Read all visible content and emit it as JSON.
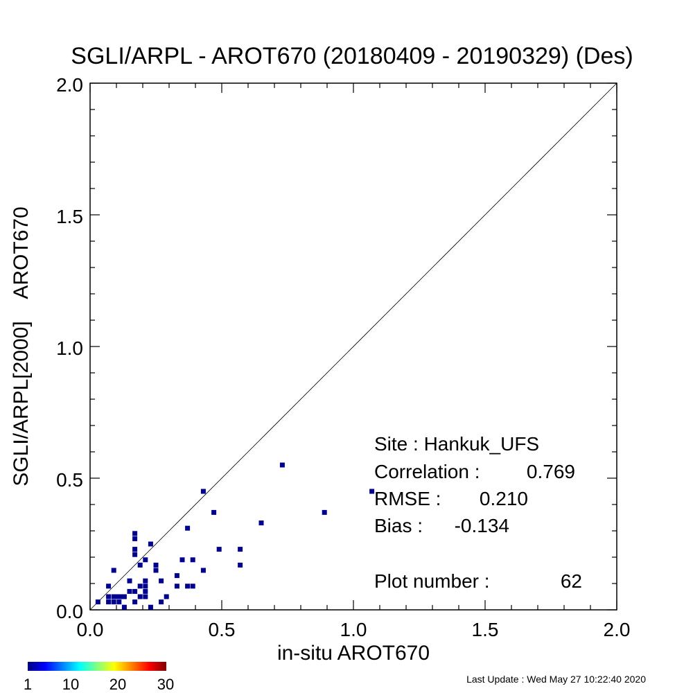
{
  "chart_data": {
    "type": "scatter",
    "title": "SGLI/ARPL - AROT670 (20180409 - 20190329) (Des)",
    "xlabel": "in-situ AROT670",
    "ylabel": "SGLI/ARPL[2000]    AROT670",
    "xlim": [
      0.0,
      2.0
    ],
    "ylim": [
      0.0,
      2.0
    ],
    "x_ticks": [
      "0.0",
      "0.5",
      "1.0",
      "1.5",
      "2.0"
    ],
    "y_ticks": [
      "0.0",
      "0.5",
      "1.0",
      "1.5",
      "2.0"
    ],
    "one_to_one_line": true,
    "grid": false,
    "point_color": "#00008f",
    "points": [
      {
        "x": 0.03,
        "y": 0.03
      },
      {
        "x": 0.07,
        "y": 0.09
      },
      {
        "x": 0.07,
        "y": 0.05
      },
      {
        "x": 0.07,
        "y": 0.03
      },
      {
        "x": 0.09,
        "y": 0.05
      },
      {
        "x": 0.09,
        "y": 0.03
      },
      {
        "x": 0.09,
        "y": 0.15
      },
      {
        "x": 0.1,
        "y": 0.05
      },
      {
        "x": 0.11,
        "y": 0.03
      },
      {
        "x": 0.11,
        "y": 0.05
      },
      {
        "x": 0.12,
        "y": 0.05
      },
      {
        "x": 0.13,
        "y": 0.01
      },
      {
        "x": 0.13,
        "y": 0.05
      },
      {
        "x": 0.15,
        "y": 0.07
      },
      {
        "x": 0.15,
        "y": 0.11
      },
      {
        "x": 0.17,
        "y": 0.03
      },
      {
        "x": 0.17,
        "y": 0.07
      },
      {
        "x": 0.17,
        "y": 0.21
      },
      {
        "x": 0.17,
        "y": 0.23
      },
      {
        "x": 0.17,
        "y": 0.27
      },
      {
        "x": 0.17,
        "y": 0.29
      },
      {
        "x": 0.19,
        "y": 0.05
      },
      {
        "x": 0.19,
        "y": 0.09
      },
      {
        "x": 0.19,
        "y": 0.17
      },
      {
        "x": 0.21,
        "y": 0.05
      },
      {
        "x": 0.21,
        "y": 0.07
      },
      {
        "x": 0.21,
        "y": 0.09
      },
      {
        "x": 0.21,
        "y": 0.11
      },
      {
        "x": 0.21,
        "y": 0.19
      },
      {
        "x": 0.23,
        "y": 0.01
      },
      {
        "x": 0.23,
        "y": 0.25
      },
      {
        "x": 0.25,
        "y": 0.15
      },
      {
        "x": 0.25,
        "y": 0.17
      },
      {
        "x": 0.27,
        "y": 0.03
      },
      {
        "x": 0.27,
        "y": 0.11
      },
      {
        "x": 0.29,
        "y": 0.05
      },
      {
        "x": 0.33,
        "y": 0.09
      },
      {
        "x": 0.33,
        "y": 0.13
      },
      {
        "x": 0.35,
        "y": 0.19
      },
      {
        "x": 0.37,
        "y": 0.09
      },
      {
        "x": 0.37,
        "y": 0.31
      },
      {
        "x": 0.39,
        "y": 0.09
      },
      {
        "x": 0.39,
        "y": 0.19
      },
      {
        "x": 0.43,
        "y": 0.15
      },
      {
        "x": 0.43,
        "y": 0.45
      },
      {
        "x": 0.47,
        "y": 0.37
      },
      {
        "x": 0.49,
        "y": 0.23
      },
      {
        "x": 0.57,
        "y": 0.17
      },
      {
        "x": 0.57,
        "y": 0.23
      },
      {
        "x": 0.65,
        "y": 0.33
      },
      {
        "x": 0.73,
        "y": 0.55
      },
      {
        "x": 0.89,
        "y": 0.37
      },
      {
        "x": 1.07,
        "y": 0.45
      }
    ]
  },
  "stats": {
    "site_label": "Site : Hankuk_UFS",
    "correlation_label": "Correlation :",
    "correlation_value": "0.769",
    "rmse_label": "RMSE :",
    "rmse_value": "0.210",
    "bias_label": "Bias :",
    "bias_value": "-0.134",
    "plot_number_label": "Plot number :",
    "plot_number_value": "62"
  },
  "colorbar": {
    "ticks": [
      "1",
      "10",
      "20",
      "30"
    ],
    "min": 1,
    "max": 30,
    "colors": [
      "#00007f",
      "#0000ff",
      "#0080ff",
      "#00ffff",
      "#80ff80",
      "#ffff00",
      "#ff8000",
      "#ff0000",
      "#7f0000"
    ]
  },
  "footer": {
    "last_update": "Last Update : Wed May 27 10:22:40 2020"
  }
}
